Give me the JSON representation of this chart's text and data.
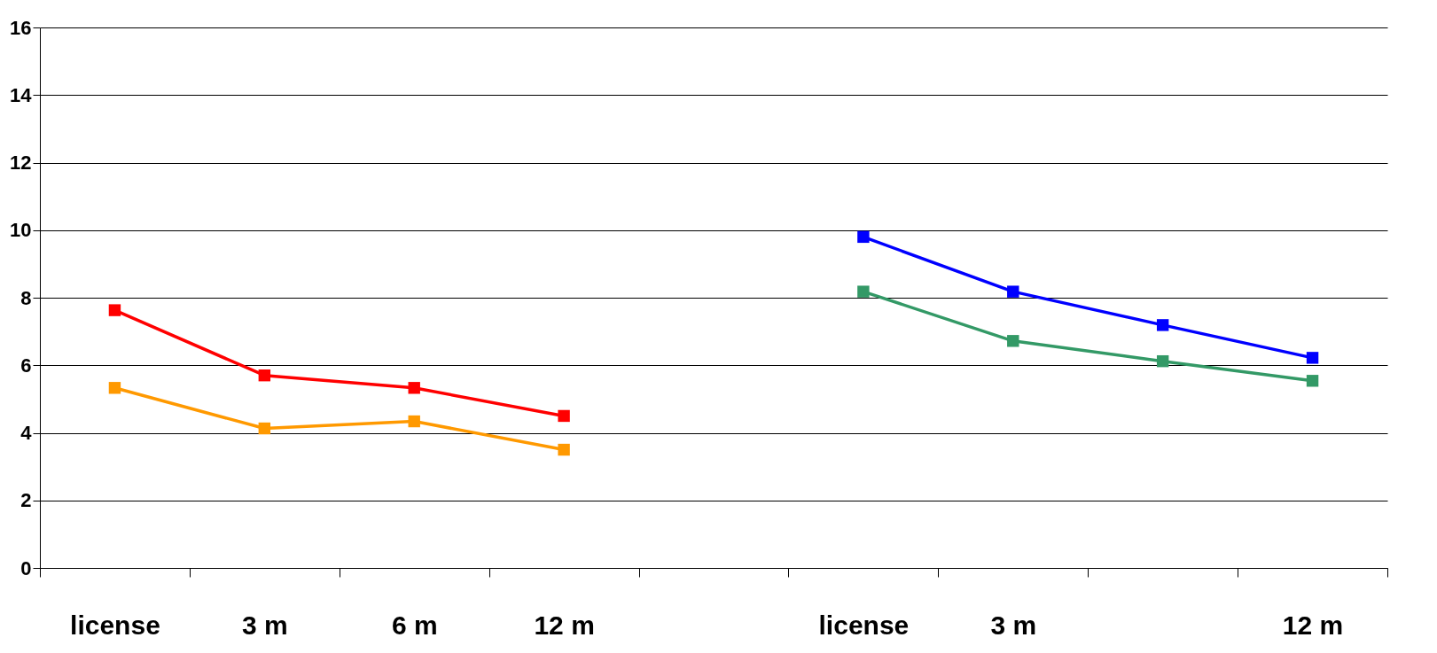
{
  "chart_data": {
    "type": "line",
    "categories": [
      "license",
      "3 m",
      "6 m",
      "12 m",
      null,
      "license",
      "3 m",
      null,
      "12 m"
    ],
    "series": [
      {
        "color": "#ff0000",
        "values": [
          7.63,
          5.7,
          5.33,
          4.5,
          null,
          null,
          null,
          null,
          null
        ]
      },
      {
        "color": "#ff9900",
        "values": [
          5.33,
          4.13,
          4.34,
          3.5,
          null,
          null,
          null,
          null,
          null
        ]
      },
      {
        "color": "#0000ff",
        "values": [
          null,
          null,
          null,
          null,
          null,
          9.8,
          8.18,
          7.19,
          6.22
        ]
      },
      {
        "color": "#339966",
        "values": [
          null,
          null,
          null,
          null,
          null,
          8.18,
          6.72,
          6.12,
          5.54
        ]
      }
    ],
    "ylim": [
      0,
      16
    ],
    "yticks": [
      0,
      2,
      4,
      6,
      8,
      10,
      12,
      14,
      16
    ],
    "grid": "y",
    "marker": "square",
    "line_style": "solid"
  }
}
